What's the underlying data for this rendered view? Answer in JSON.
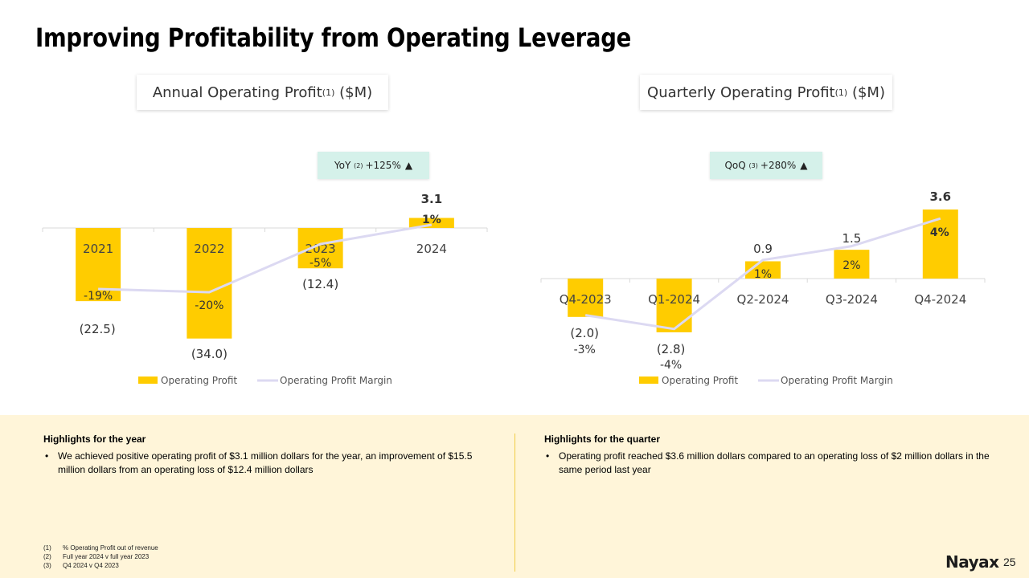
{
  "title": "Improving Profitability from Operating Leverage",
  "annual": {
    "header": {
      "label": "Annual Operating Profit",
      "sup": "(1)",
      "unit": "($M)"
    },
    "badge": {
      "label": "YoY",
      "sup": "(2)",
      "value": "+125%",
      "arrow": "▲"
    }
  },
  "quarterly": {
    "header": {
      "label": "Quarterly Operating Profit",
      "sup": "(1)",
      "unit": "($M)"
    },
    "badge": {
      "label": "QoQ",
      "sup": "(3)",
      "value": "+280%",
      "arrow": "▲"
    }
  },
  "chart_data": [
    {
      "type": "bar",
      "title": "Annual Operating Profit(1) ($M)",
      "categories": [
        "2021",
        "2022",
        "2023",
        "2024"
      ],
      "series": [
        {
          "name": "Operating Profit",
          "type": "bar",
          "values": [
            -22.5,
            -34.0,
            -12.4,
            3.1
          ],
          "labels": [
            "(22.5)",
            "(34.0)",
            "(12.4)",
            "3.1"
          ],
          "color": "#ffcc00"
        },
        {
          "name": "Operating Profit Margin",
          "type": "line",
          "values": [
            -19,
            -20,
            -5,
            1
          ],
          "labels": [
            "-19%",
            "-20%",
            "-5%",
            "1%"
          ],
          "unit": "%",
          "color": "#dcd9f2"
        }
      ],
      "legend": {
        "position": "bottom",
        "entries": [
          "Operating Profit",
          "Operating Profit Margin"
        ]
      },
      "grid": false
    },
    {
      "type": "bar",
      "title": "Quarterly Operating Profit(1) ($M)",
      "categories": [
        "Q4-2023",
        "Q1-2024",
        "Q2-2024",
        "Q3-2024",
        "Q4-2024"
      ],
      "series": [
        {
          "name": "Operating Profit",
          "type": "bar",
          "values": [
            -2.0,
            -2.8,
            0.9,
            1.5,
            3.6
          ],
          "labels": [
            "(2.0)",
            "(2.8)",
            "0.9",
            "1.5",
            "3.6"
          ],
          "color": "#ffcc00"
        },
        {
          "name": "Operating Profit Margin",
          "type": "line",
          "values": [
            -3,
            -4,
            1,
            2,
            4
          ],
          "labels": [
            "-3%",
            "-4%",
            "1%",
            "2%",
            "4%"
          ],
          "unit": "%",
          "color": "#dcd9f2"
        }
      ],
      "legend": {
        "position": "bottom",
        "entries": [
          "Operating Profit",
          "Operating Profit Margin"
        ]
      },
      "grid": false
    }
  ],
  "highlights": {
    "year": {
      "heading": "Highlights for the year",
      "bullets": [
        "We achieved positive operating profit of $3.1 million dollars for the year, an improvement of $15.5 million dollars from an operating loss of $12.4 million dollars"
      ]
    },
    "quarter": {
      "heading": "Highlights for the quarter",
      "bullets": [
        "Operating profit reached $3.6 million dollars compared to an operating loss of $2 million dollars in the same period last year"
      ]
    }
  },
  "footnotes": [
    {
      "num": "(1)",
      "text": "% Operating Profit out of revenue"
    },
    {
      "num": "(2)",
      "text": "Full year 2024 v full year 2023"
    },
    {
      "num": "(3)",
      "text": "Q4 2024 v Q4 2023"
    }
  ],
  "logo": {
    "text": "Nayax"
  },
  "page_number": "25"
}
